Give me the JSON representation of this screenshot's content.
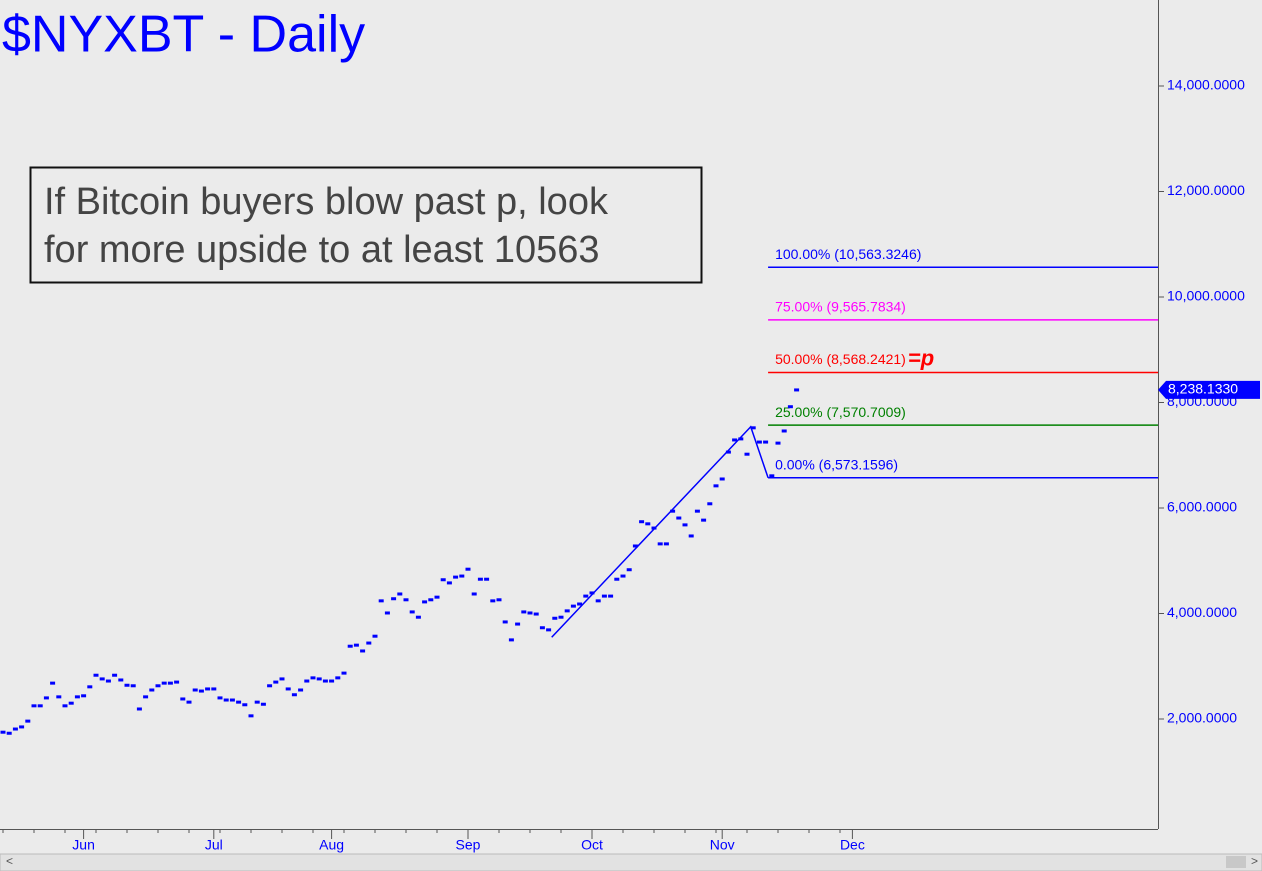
{
  "chart_data": {
    "type": "dash",
    "title": "$NYXBT - Daily",
    "color": "#0000ff",
    "categories": [
      null,
      null,
      null,
      null,
      null,
      null,
      null,
      null,
      null,
      null,
      null,
      null,
      null,
      "Jun",
      null,
      null,
      null,
      null,
      null,
      null,
      null,
      null,
      null,
      null,
      null,
      null,
      null,
      null,
      null,
      null,
      null,
      null,
      null,
      null,
      "Jul",
      null,
      null,
      null,
      null,
      null,
      null,
      null,
      null,
      null,
      null,
      null,
      null,
      null,
      null,
      null,
      null,
      null,
      null,
      "Aug",
      null,
      null,
      null,
      null,
      null,
      null,
      null,
      null,
      null,
      null,
      null,
      null,
      null,
      null,
      null,
      null,
      null,
      null,
      null,
      null,
      null,
      "Sep",
      null,
      null,
      null,
      null,
      null,
      null,
      null,
      null,
      null,
      null,
      null,
      null,
      null,
      null,
      null,
      null,
      null,
      null,
      null,
      "Oct",
      null,
      null,
      null,
      null,
      null,
      null,
      null,
      null,
      null,
      null,
      null,
      null,
      null,
      null,
      null,
      null,
      null,
      null,
      null,
      null,
      "Nov",
      null,
      null,
      null,
      null,
      null,
      null,
      null,
      null,
      null,
      null,
      null,
      null,
      null,
      null,
      null,
      null,
      null,
      null,
      null,
      null,
      "Dec"
    ],
    "values": [
      1750,
      1730,
      1810,
      1850,
      1960,
      2250,
      2250,
      2400,
      2680,
      2420,
      2250,
      2300,
      2420,
      2440,
      2610,
      2830,
      2760,
      2720,
      2830,
      2740,
      2640,
      2630,
      2190,
      2420,
      2550,
      2630,
      2680,
      2680,
      2700,
      2380,
      2320,
      2550,
      2530,
      2570,
      2570,
      2400,
      2360,
      2360,
      2320,
      2270,
      2060,
      2320,
      2280,
      2630,
      2700,
      2760,
      2570,
      2460,
      2550,
      2720,
      2780,
      2760,
      2720,
      2720,
      2780,
      2870,
      3380,
      3400,
      3290,
      3440,
      3570,
      4240,
      4010,
      4280,
      4370,
      4260,
      4030,
      3930,
      4220,
      4260,
      4310,
      4640,
      4580,
      4690,
      4710,
      4840,
      4370,
      4650,
      4650,
      4240,
      4260,
      3840,
      3500,
      3800,
      4030,
      4010,
      3990,
      3730,
      3690,
      3910,
      3930,
      4050,
      4140,
      4180,
      4330,
      4390,
      4240,
      4330,
      4330,
      4650,
      4710,
      4830,
      5280,
      5740,
      5700,
      5620,
      5320,
      5320,
      5940,
      5810,
      5680,
      5470,
      5940,
      5770,
      6080,
      6420,
      6550,
      7060,
      7290,
      7310,
      7020,
      7520,
      7250,
      7250,
      6610,
      7230,
      7460,
      7920,
      8238.133,
      null,
      null,
      null,
      null,
      null,
      null,
      null,
      null,
      null
    ],
    "ylim": [
      -85,
      15630
    ],
    "yticks": [
      {
        "value": 2000,
        "label": "2,000.0000"
      },
      {
        "value": 4000,
        "label": "4,000.0000"
      },
      {
        "value": 6000,
        "label": "6,000.0000"
      },
      {
        "value": 8000,
        "label": "8,000.0000"
      },
      {
        "value": 10000,
        "label": "10,000.0000"
      },
      {
        "value": 12000,
        "label": "12,000.0000"
      },
      {
        "value": 14000,
        "label": "14,000.0000"
      }
    ],
    "last_price": {
      "value": 8238.133,
      "label": "8,238.1330"
    },
    "pattern": [
      {
        "x": 88.5,
        "y": 3550
      },
      {
        "x": 120.6,
        "y": 7540
      },
      {
        "x": 123.4,
        "y": 6573.1596
      }
    ],
    "levels": [
      {
        "value": 10563.3246,
        "label": "100.00% (10,563.3246)",
        "color": "#0000ff"
      },
      {
        "value": 9565.7834,
        "label": "75.00% (9,565.7834)",
        "color": "#ff00ff"
      },
      {
        "value": 8568.2421,
        "label": "50.00% (8,568.2421)",
        "color": "#ff0000",
        "note": "=p"
      },
      {
        "value": 7570.7009,
        "label": "25.00% (7,570.7009)",
        "color": "#008000"
      },
      {
        "value": 6573.1596,
        "label": "0.00% (6,573.1596)",
        "color": "#0000ff"
      }
    ],
    "annotation": [
      "If Bitcoin buyers blow past p, look",
      "for more upside to at least 10563"
    ]
  }
}
